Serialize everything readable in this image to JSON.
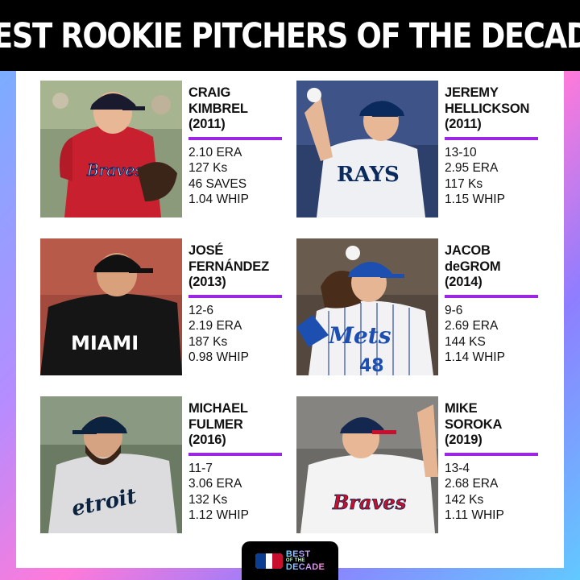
{
  "title": "BEST ROOKIE PITCHERS OF THE DECADE",
  "colors": {
    "accent": "#9b27e3",
    "title_bg": "#000000"
  },
  "cards": [
    {
      "name_lines": [
        "CRAIG",
        "KIMBREL",
        "(2011)"
      ],
      "stats": [
        "2.10 ERA",
        "127 Ks",
        "46 SAVES",
        "1.04 WHIP"
      ],
      "photo_icon": "pitcher-braves-red-jersey"
    },
    {
      "name_lines": [
        "JEREMY",
        "HELLICKSON",
        "(2011)"
      ],
      "stats": [
        "13-10",
        "2.95 ERA",
        "117 Ks",
        "1.15 WHIP"
      ],
      "photo_icon": "pitcher-rays-jersey",
      "jersey_text": "RAYS"
    },
    {
      "name_lines": [
        "JOSÉ",
        "FERNÁNDEZ",
        "(2013)"
      ],
      "stats": [
        "12-6",
        "2.19 ERA",
        "187 Ks",
        "0.98 WHIP"
      ],
      "photo_icon": "pitcher-marlins-jersey",
      "jersey_text": "MIAMI"
    },
    {
      "name_lines": [
        "JACOB",
        "deGROM",
        "(2014)"
      ],
      "stats": [
        "9-6",
        "2.69 ERA",
        "144 KS",
        "1.14 WHIP"
      ],
      "photo_icon": "pitcher-mets-jersey",
      "jersey_text": "Mets",
      "jersey_number": "48"
    },
    {
      "name_lines": [
        "MICHAEL",
        "FULMER",
        "(2016)"
      ],
      "stats": [
        "11-7",
        "3.06 ERA",
        "132 Ks",
        "1.12 WHIP"
      ],
      "photo_icon": "pitcher-tigers-jersey",
      "jersey_text": "etroit"
    },
    {
      "name_lines": [
        "MIKE",
        "SOROKA",
        "(2019)"
      ],
      "stats": [
        "13-4",
        "2.68 ERA",
        "142 Ks",
        "1.11 WHIP"
      ],
      "photo_icon": "pitcher-braves-white-jersey",
      "jersey_text": "Braves"
    }
  ],
  "footer": {
    "logo_icon": "mlb-logo-icon",
    "line1": "BEST",
    "line2": "OF THE",
    "line3": "DECADE"
  }
}
